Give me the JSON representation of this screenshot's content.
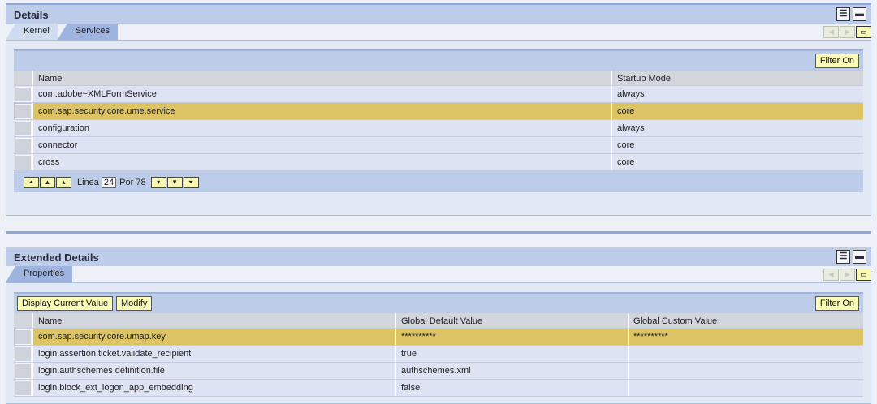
{
  "details": {
    "title": "Details",
    "tabs": [
      {
        "label": "Kernel",
        "active": false
      },
      {
        "label": "Services",
        "active": true
      }
    ],
    "filter_label": "Filter On",
    "columns": [
      "Name",
      "Startup Mode"
    ],
    "rows": [
      [
        "com.adobe~XMLFormService",
        "always"
      ],
      [
        "com.sap.security.core.ume.service",
        "core"
      ],
      [
        "configuration",
        "always"
      ],
      [
        "connector",
        "core"
      ],
      [
        "cross",
        "core"
      ]
    ],
    "selected_row": 1,
    "pager": {
      "line_label": "Linea",
      "line_value": "24",
      "of_label": "Por 78"
    }
  },
  "extended": {
    "title": "Extended Details",
    "tabs": [
      {
        "label": "Properties",
        "active": true
      }
    ],
    "display_label": "Display Current Value",
    "modify_label": "Modify",
    "filter_label": "Filter On",
    "columns": [
      "Name",
      "Global Default Value",
      "Global Custom Value"
    ],
    "rows": [
      [
        "com.sap.security.core.umap.key",
        "**********",
        "**********"
      ],
      [
        "login.assertion.ticket.validate_recipient",
        "true",
        ""
      ],
      [
        "login.authschemes.definition.file",
        "authschemes.xml",
        ""
      ],
      [
        "login.block_ext_logon_app_embedding",
        "false",
        ""
      ]
    ],
    "selected_row": 0
  },
  "colors": {
    "header": "#bdcde9",
    "selected": "#dcc464",
    "button": "#fbfbb8"
  }
}
